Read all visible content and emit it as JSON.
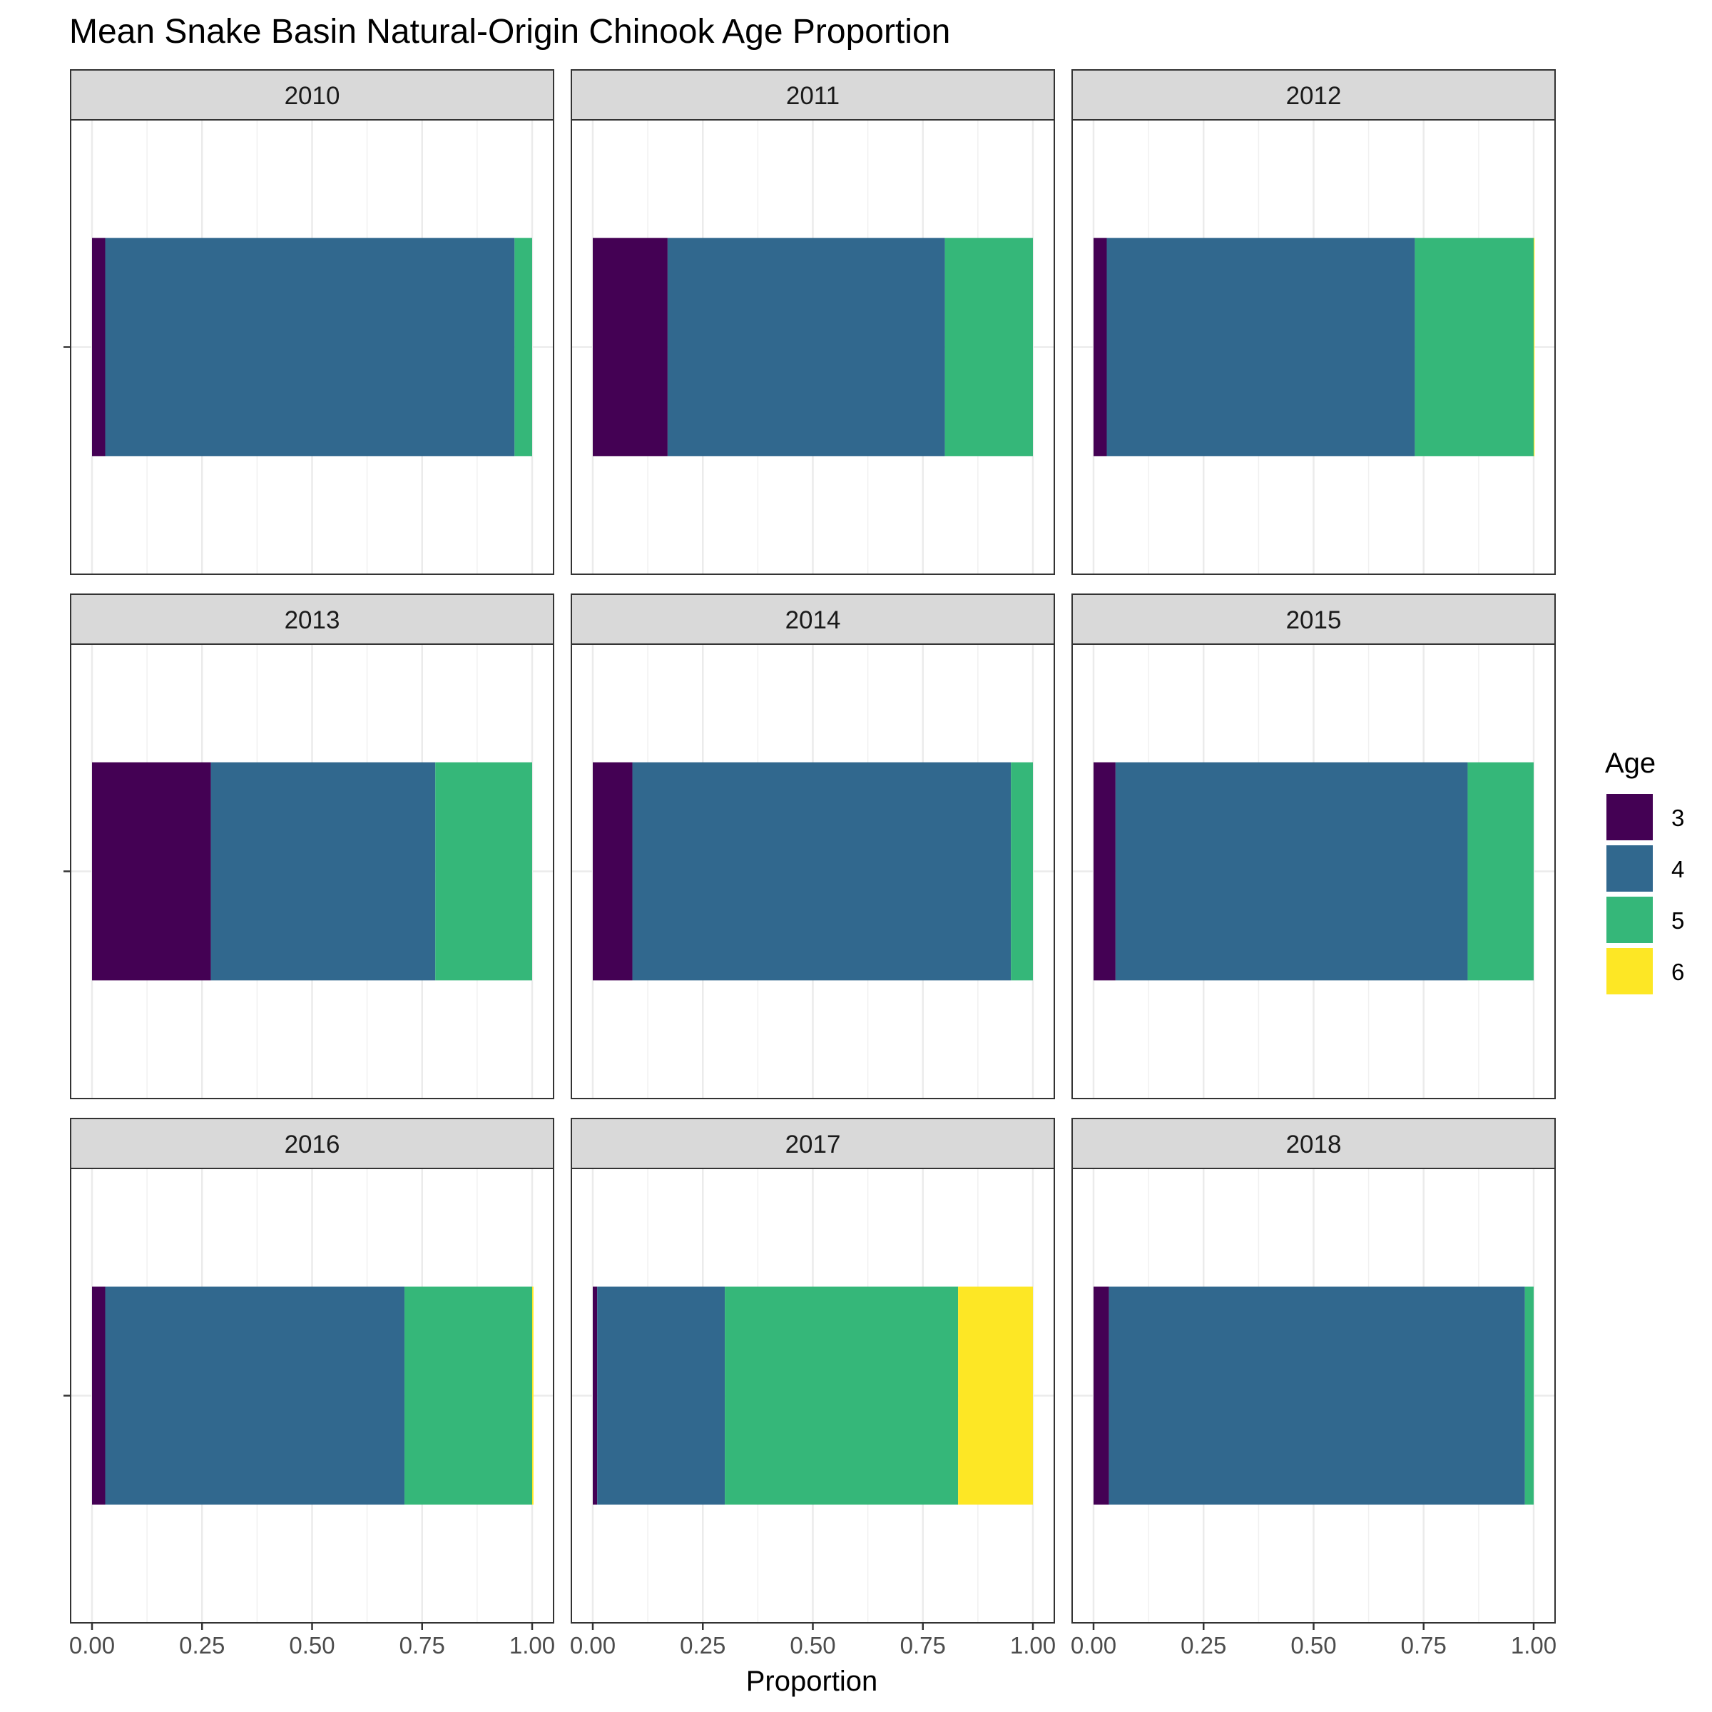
{
  "chart_data": {
    "type": "bar",
    "orientation": "horizontal",
    "stacked": true,
    "faceted": true,
    "title": "Mean Snake Basin Natural-Origin Chinook Age Proportion",
    "xlabel": "Proportion",
    "ylabel": "",
    "xlim": [
      0,
      1
    ],
    "x_ticks": [
      "0.00",
      "0.25",
      "0.50",
      "0.75",
      "1.00"
    ],
    "x_tick_values": [
      0,
      0.25,
      0.5,
      0.75,
      1.0
    ],
    "grid": true,
    "legend": {
      "title": "Age",
      "position": "right",
      "entries": [
        {
          "label": "3",
          "color": "#440154"
        },
        {
          "label": "4",
          "color": "#31688E"
        },
        {
          "label": "5",
          "color": "#35B779"
        },
        {
          "label": "6",
          "color": "#FDE725"
        }
      ]
    },
    "ages": [
      "3",
      "4",
      "5",
      "6"
    ],
    "facets": [
      {
        "year": "2010",
        "values": [
          0.03,
          0.93,
          0.04,
          0.0
        ]
      },
      {
        "year": "2011",
        "values": [
          0.17,
          0.63,
          0.2,
          0.0
        ]
      },
      {
        "year": "2012",
        "values": [
          0.03,
          0.7,
          0.27,
          0.002
        ]
      },
      {
        "year": "2013",
        "values": [
          0.27,
          0.51,
          0.22,
          0.0
        ]
      },
      {
        "year": "2014",
        "values": [
          0.09,
          0.86,
          0.05,
          0.0
        ]
      },
      {
        "year": "2015",
        "values": [
          0.05,
          0.8,
          0.15,
          0.0
        ]
      },
      {
        "year": "2016",
        "values": [
          0.03,
          0.68,
          0.29,
          0.003
        ]
      },
      {
        "year": "2017",
        "values": [
          0.01,
          0.29,
          0.53,
          0.17
        ]
      },
      {
        "year": "2018",
        "values": [
          0.035,
          0.945,
          0.02,
          0.0
        ]
      }
    ]
  }
}
